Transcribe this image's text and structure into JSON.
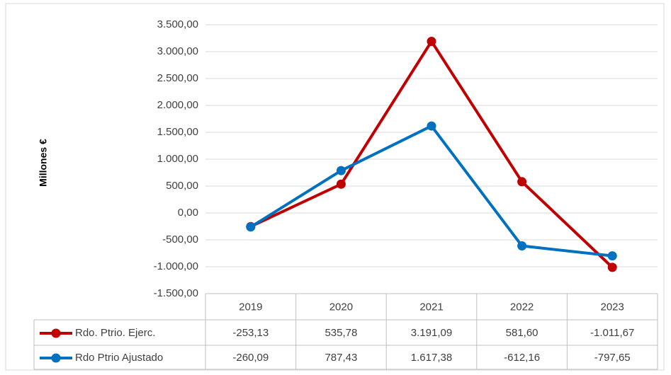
{
  "chart_data": {
    "type": "line",
    "y_label": "Millones €",
    "categories": [
      "2019",
      "2020",
      "2021",
      "2022",
      "2023"
    ],
    "series": [
      {
        "name": "Rdo. Ptrio. Ejerc.",
        "color": "#c00000",
        "values": [
          -253.13,
          535.78,
          3191.09,
          581.6,
          -1011.67
        ],
        "value_labels": [
          "-253,13",
          "535,78",
          "3.191,09",
          "581,60",
          "-1.011,67"
        ]
      },
      {
        "name": "Rdo Ptrio Ajustado",
        "color": "#0070c0",
        "values": [
          -260.09,
          787.43,
          1617.38,
          -612.16,
          -797.65
        ],
        "value_labels": [
          "-260,09",
          "787,43",
          "1.617,38",
          "-612,16",
          "-797,65"
        ]
      }
    ],
    "ylim": [
      -1500,
      3500
    ],
    "yticks": [
      {
        "value": -1500,
        "label": "-1.500,00"
      },
      {
        "value": -1000,
        "label": "-1.000,00"
      },
      {
        "value": -500,
        "label": "-500,00"
      },
      {
        "value": 0,
        "label": "0,00"
      },
      {
        "value": 500,
        "label": "500,00"
      },
      {
        "value": 1000,
        "label": "1.000,00"
      },
      {
        "value": 1500,
        "label": "1.500,00"
      },
      {
        "value": 2000,
        "label": "2.000,00"
      },
      {
        "value": 2500,
        "label": "2.500,00"
      },
      {
        "value": 3000,
        "label": "3.000,00"
      },
      {
        "value": 3500,
        "label": "3.500,00"
      }
    ],
    "grid": true
  }
}
